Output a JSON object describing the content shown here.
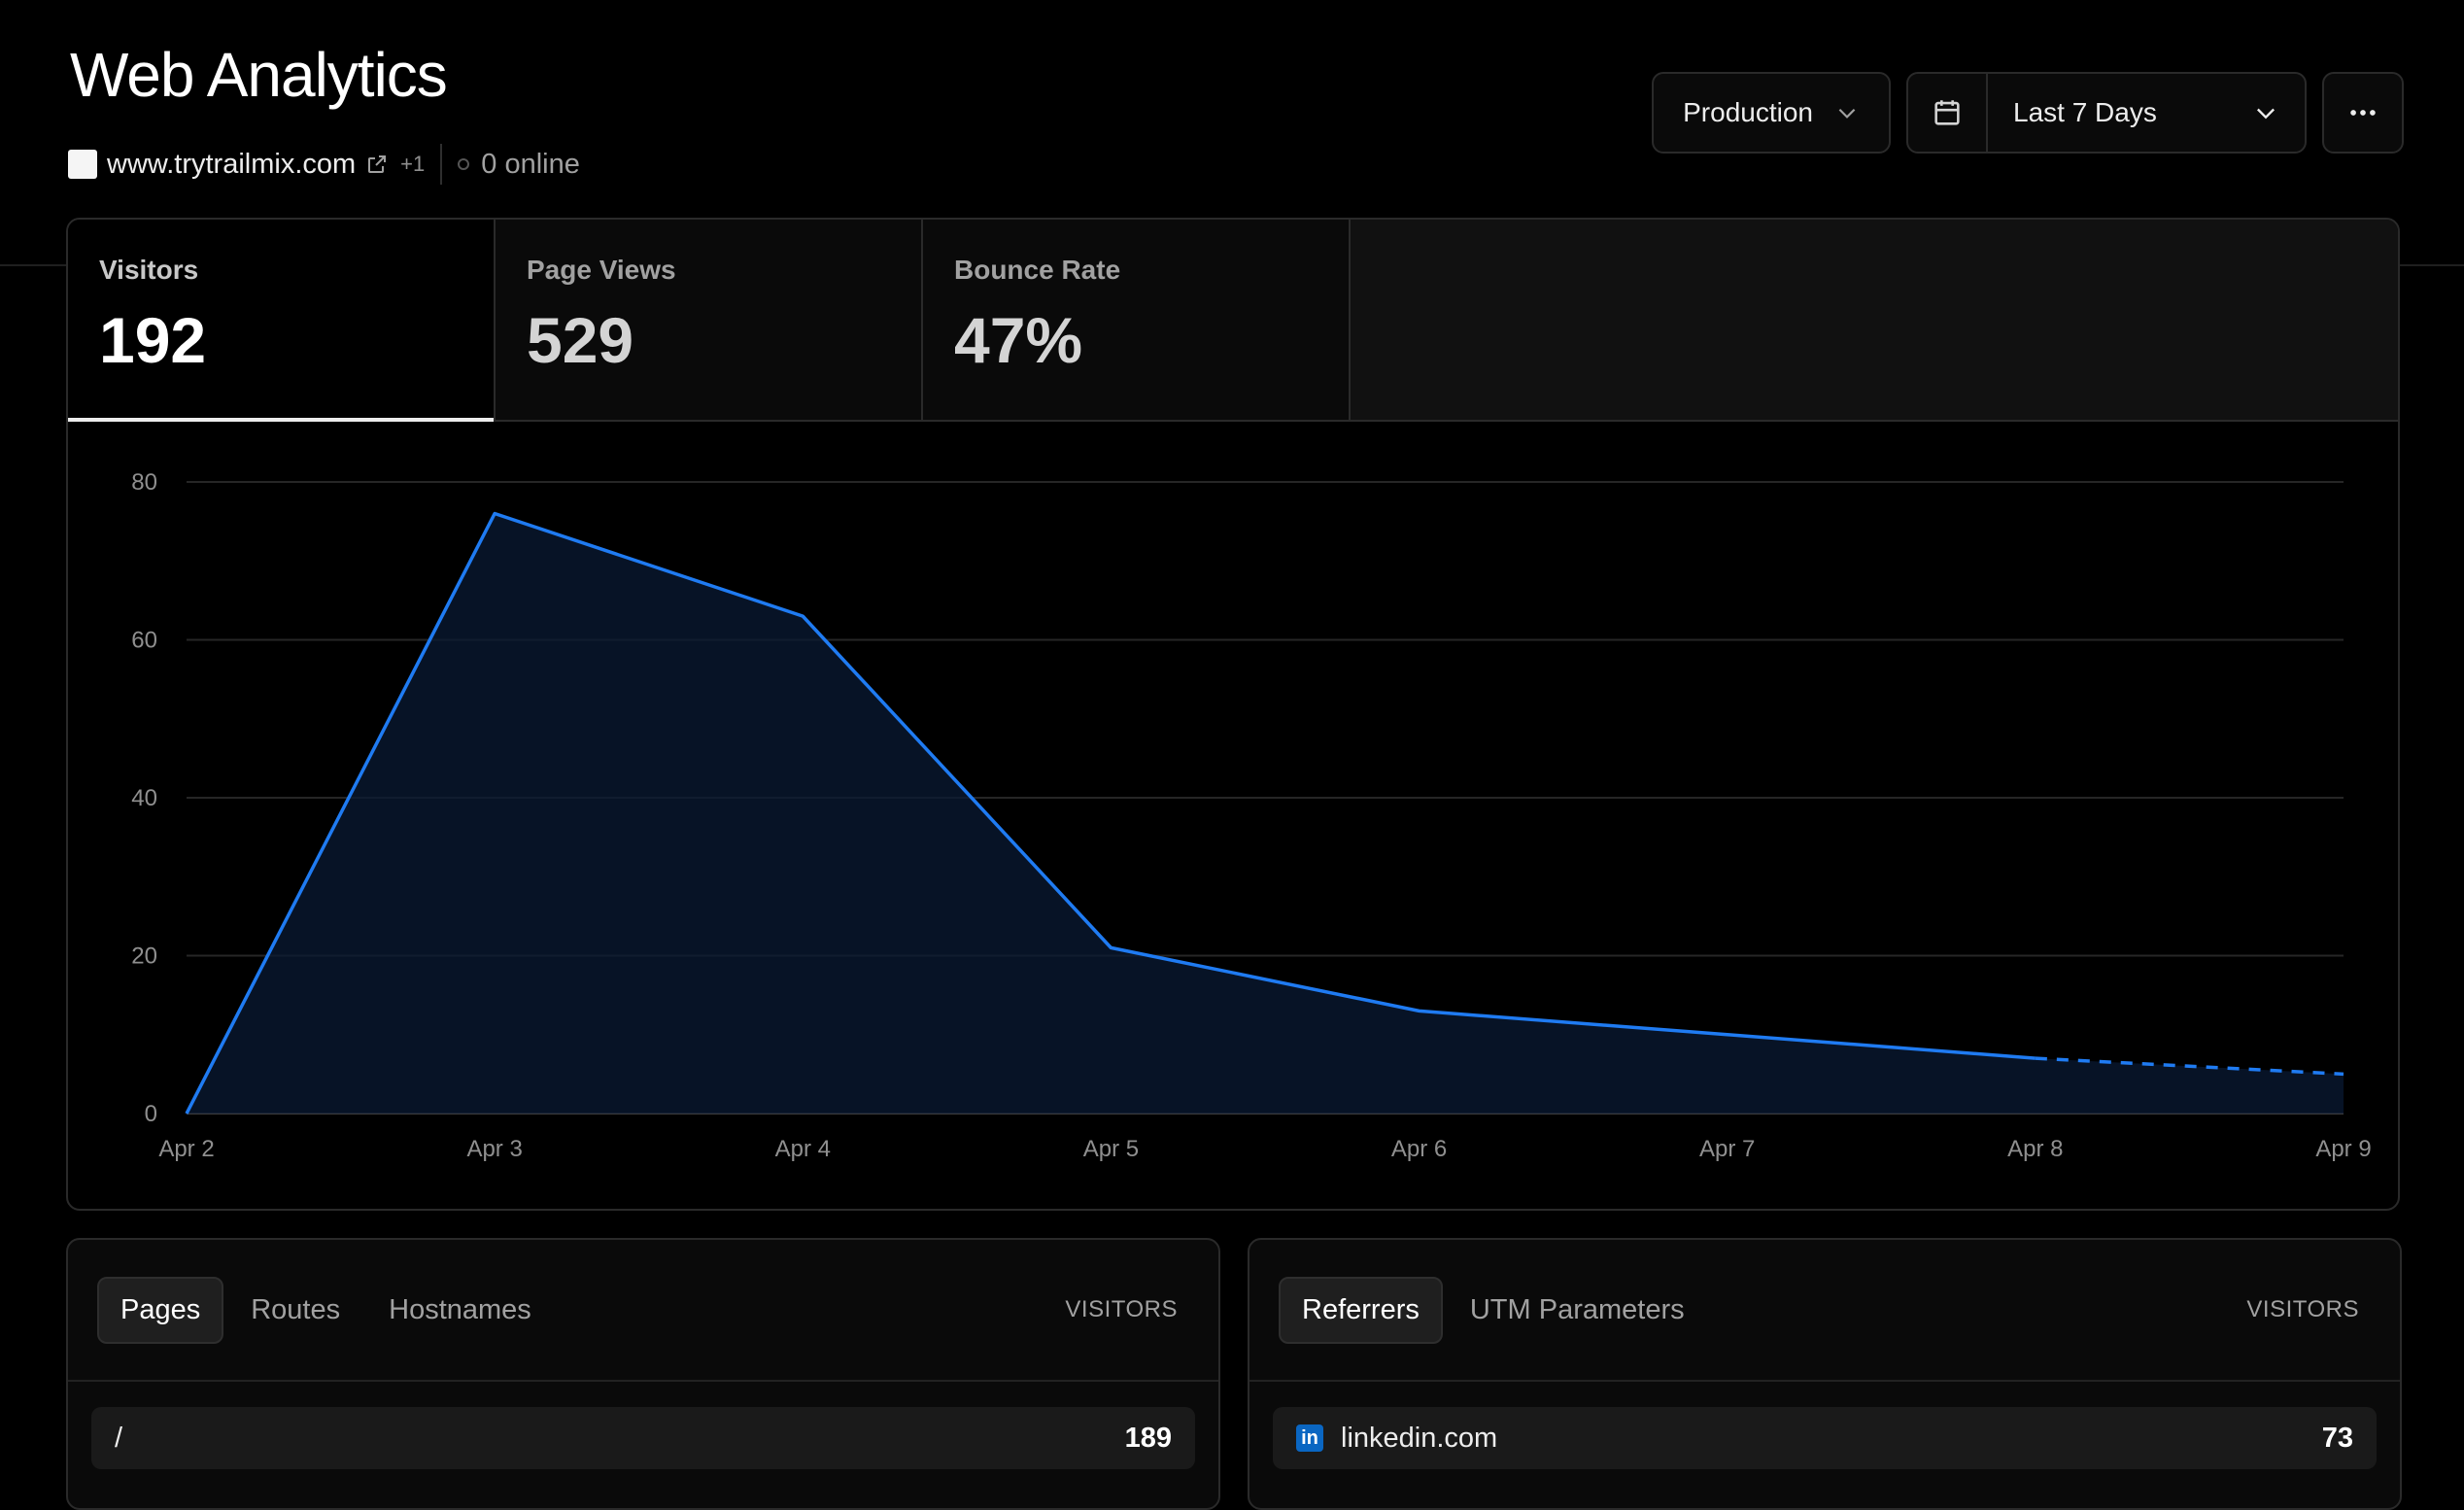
{
  "header": {
    "title": "Web Analytics",
    "site": "www.trytrailmix.com",
    "plus_count": "+1",
    "online_status": "0 online"
  },
  "toolbar": {
    "environment": "Production",
    "date_range": "Last 7 Days",
    "more_icon": "more-horizontal-icon"
  },
  "stats": [
    {
      "label": "Visitors",
      "value": "192"
    },
    {
      "label": "Page Views",
      "value": "529"
    },
    {
      "label": "Bounce Rate",
      "value": "47%"
    }
  ],
  "chart_data": {
    "type": "area",
    "x": [
      "Apr 2",
      "Apr 3",
      "Apr 4",
      "Apr 5",
      "Apr 6",
      "Apr 7",
      "Apr 8",
      "Apr 9"
    ],
    "series": [
      {
        "values": [
          0,
          76,
          63,
          21,
          13,
          10,
          7,
          5
        ]
      }
    ],
    "ylim": [
      0,
      80
    ],
    "yticks": [
      0,
      20,
      40,
      60,
      80
    ],
    "grid": true,
    "line_color": "#1f7bf2",
    "partial_last_segment": "dashed"
  },
  "pages_panel": {
    "tabs": [
      "Pages",
      "Routes",
      "Hostnames"
    ],
    "column_header": "VISITORS",
    "rows": [
      {
        "label": "/",
        "value": "189"
      }
    ]
  },
  "referrers_panel": {
    "tabs": [
      "Referrers",
      "UTM Parameters"
    ],
    "column_header": "VISITORS",
    "rows": [
      {
        "label": "linkedin.com",
        "value": "73",
        "icon": "linkedin-icon"
      }
    ]
  },
  "colors": {
    "background": "#000000",
    "accent": "#1f7bf2"
  }
}
